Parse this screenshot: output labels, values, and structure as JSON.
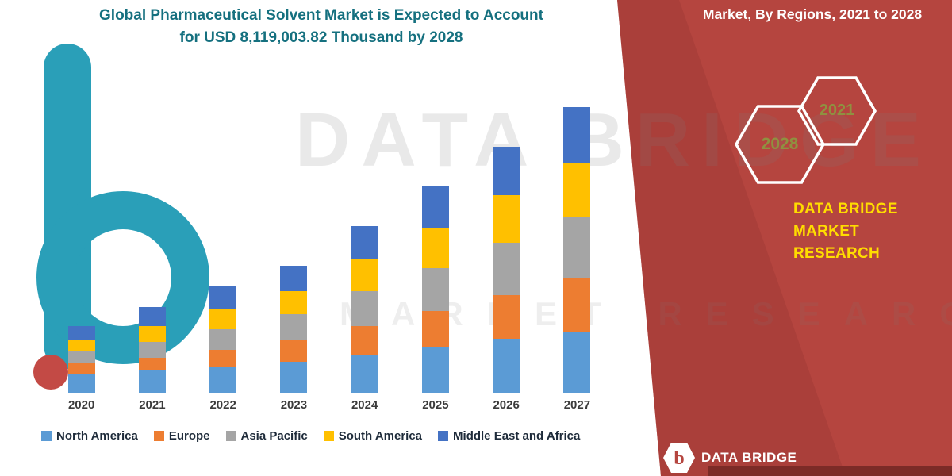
{
  "page": {
    "title_line1": "Global Pharmaceutical Solvent Market is Expected to Account",
    "title_line2": "for USD 8,119,003.82 Thousand by 2028"
  },
  "banner": {
    "heading": "Market, By Regions, 2021 to 2028",
    "hexagons": [
      {
        "label": "2028"
      },
      {
        "label": "2021"
      }
    ],
    "brand_line1": "DATA BRIDGE MARKET",
    "brand_line2": "RESEARCH"
  },
  "watermark": {
    "line1": "DATA BRIDGE",
    "line2": "MARKET RESEARCH"
  },
  "footer": {
    "brand": "DATA BRIDGE",
    "logo_letter": "b"
  },
  "colors": {
    "accent_red": "#b5453f",
    "accent_red_dark": "#a03a36",
    "title_teal": "#15707f",
    "brand_yellow": "#ffdc00",
    "hex_olive": "#8f9140",
    "logo_teal": "#1f9ab5"
  },
  "chart_data": {
    "type": "bar",
    "stacked": true,
    "title": "Global Pharmaceutical Solvent Market is Expected to Account for USD 8,119,003.82 Thousand by 2028",
    "subtitle": "Market, By Regions, 2021 to 2028",
    "categories": [
      "2020",
      "2021",
      "2022",
      "2023",
      "2024",
      "2025",
      "2026",
      "2027"
    ],
    "series": [
      {
        "name": "North America",
        "color": "#5b9bd5",
        "values": [
          24,
          28,
          33,
          39,
          48,
          58,
          68,
          76
        ]
      },
      {
        "name": "Europe",
        "color": "#ed7d31",
        "values": [
          13,
          16,
          21,
          27,
          36,
          45,
          55,
          68
        ]
      },
      {
        "name": "Asia Pacific",
        "color": "#a5a5a5",
        "values": [
          16,
          20,
          26,
          33,
          44,
          54,
          66,
          78
        ]
      },
      {
        "name": "South America",
        "color": "#ffc000",
        "values": [
          13,
          20,
          25,
          29,
          40,
          50,
          60,
          68
        ]
      },
      {
        "name": "Middle East and Africa",
        "color": "#4472c4",
        "values": [
          18,
          24,
          30,
          32,
          42,
          53,
          61,
          70
        ]
      }
    ],
    "value_units": "relative (no y-axis labels shown)",
    "ylim": [
      0,
      370
    ],
    "y_axis_visible": false,
    "gridlines": false,
    "legend_position": "bottom"
  }
}
